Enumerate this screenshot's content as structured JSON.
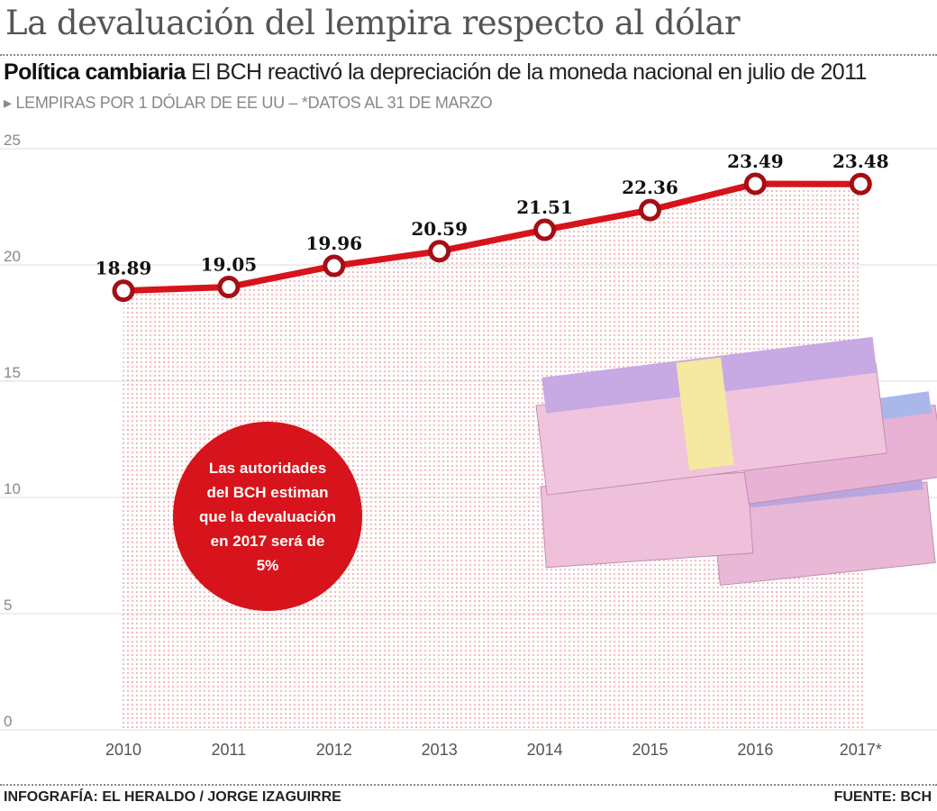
{
  "header": {
    "title": "La devaluación del lempira respecto al dólar",
    "subtitle_bold": "Política cambiaria",
    "subtitle": " El BCH reactivó la depreciación de la moneda nacional en julio de 2011",
    "note": "LEMPIRAS POR 1 DÓLAR DE EE UU – *DATOS AL 31 DE MARZO"
  },
  "chart_data": {
    "type": "line",
    "categories": [
      "2010",
      "2011",
      "2012",
      "2013",
      "2014",
      "2015",
      "2016",
      "2017*"
    ],
    "values": [
      18.89,
      19.05,
      19.96,
      20.59,
      21.51,
      22.36,
      23.49,
      23.48
    ],
    "data_labels": [
      "18.89",
      "19.05",
      "19.96",
      "20.59",
      "21.51",
      "22.36",
      "23.49",
      "23.48"
    ],
    "ylim": [
      0,
      25
    ],
    "yticks": [
      "0",
      "5",
      "10",
      "15",
      "20",
      "25"
    ],
    "grid": true,
    "line_color": "#d7131b",
    "fill": "dotted pink area under line"
  },
  "callout": "Las autoridades del BCH estiman que la devaluación en 2017 será de 5%",
  "footer": {
    "left": "INFOGRAFÍA: EL HERALDO / JORGE IZAGUIRRE",
    "right": "FUENTE: BCH"
  }
}
